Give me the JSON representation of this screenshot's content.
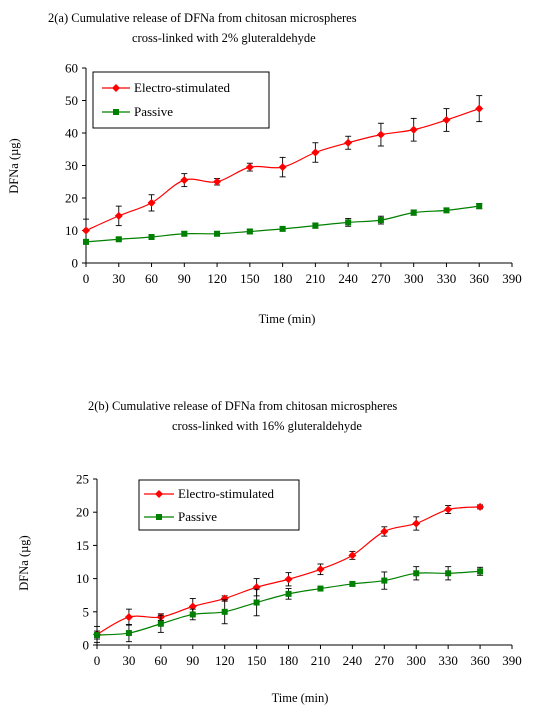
{
  "chart_data": [
    {
      "type": "line",
      "title_lines": [
        "2(a)   Cumulative release of DFNa from chitosan microspheres",
        "cross-linked with 2% gluteraldehyde"
      ],
      "xlabel": "Time (min)",
      "ylabel": "DFNa (µg)",
      "xlim": [
        0,
        390
      ],
      "ylim": [
        0,
        60
      ],
      "xticks": [
        0,
        30,
        60,
        90,
        120,
        150,
        180,
        210,
        240,
        270,
        300,
        330,
        360,
        390
      ],
      "yticks": [
        0,
        10,
        20,
        30,
        40,
        50,
        60
      ],
      "grid": false,
      "legend_position": "top-left",
      "x": [
        0,
        30,
        60,
        90,
        120,
        150,
        180,
        210,
        240,
        270,
        300,
        330,
        360
      ],
      "series": [
        {
          "name": "Electro-stimulated",
          "color": "#ff0000",
          "marker": "diamond",
          "values": [
            10,
            14.5,
            18.5,
            25.5,
            25,
            29.5,
            29.5,
            34,
            37,
            39.5,
            41,
            44,
            47.5
          ],
          "errors": [
            3.5,
            3,
            2.5,
            2,
            1,
            1.2,
            3,
            3,
            2,
            3.5,
            3.5,
            3.5,
            4
          ]
        },
        {
          "name": "Passive",
          "color": "#008000",
          "marker": "square",
          "values": [
            6.5,
            7.3,
            8,
            9,
            9,
            9.7,
            10.5,
            11.5,
            12.5,
            13.2,
            15.5,
            16.2,
            17.5
          ],
          "errors": [
            0.5,
            0.5,
            0.6,
            0.6,
            0.6,
            0.6,
            0.6,
            0.8,
            1.2,
            1.2,
            0.8,
            0.6,
            0.8
          ]
        }
      ]
    },
    {
      "type": "line",
      "title_lines": [
        "2(b)   Cumulative release of DFNa from chitosan microspheres",
        "cross-linked with 16% gluteraldehyde"
      ],
      "xlabel": "Time (min)",
      "ylabel": "DFNa (µg)",
      "xlim": [
        0,
        390
      ],
      "ylim": [
        0,
        25
      ],
      "xticks": [
        0,
        30,
        60,
        90,
        120,
        150,
        180,
        210,
        240,
        270,
        300,
        330,
        360,
        390
      ],
      "yticks": [
        0,
        5,
        10,
        15,
        20,
        25
      ],
      "grid": false,
      "legend_position": "top-left",
      "x": [
        0,
        30,
        60,
        90,
        120,
        150,
        180,
        210,
        240,
        270,
        300,
        330,
        360
      ],
      "series": [
        {
          "name": "Electro-stimulated",
          "color": "#ff0000",
          "marker": "diamond",
          "values": [
            1.6,
            4.2,
            4.2,
            5.8,
            7,
            8.7,
            9.9,
            11.4,
            13.5,
            17.1,
            18.3,
            20.4,
            20.8
          ],
          "errors": [
            1.2,
            1.2,
            0.5,
            1.2,
            0.4,
            1.3,
            1,
            0.8,
            0.6,
            0.7,
            1,
            0.6,
            0.3
          ]
        },
        {
          "name": "Passive",
          "color": "#008000",
          "marker": "square",
          "values": [
            1.5,
            1.8,
            3.2,
            4.6,
            5,
            6.4,
            7.7,
            8.5,
            9.2,
            9.7,
            10.8,
            10.8,
            11.1
          ],
          "errors": [
            0.6,
            1.3,
            1.3,
            0.8,
            1.8,
            2,
            0.8,
            0.2,
            0.3,
            1.3,
            1,
            1,
            0.6
          ]
        }
      ]
    }
  ]
}
